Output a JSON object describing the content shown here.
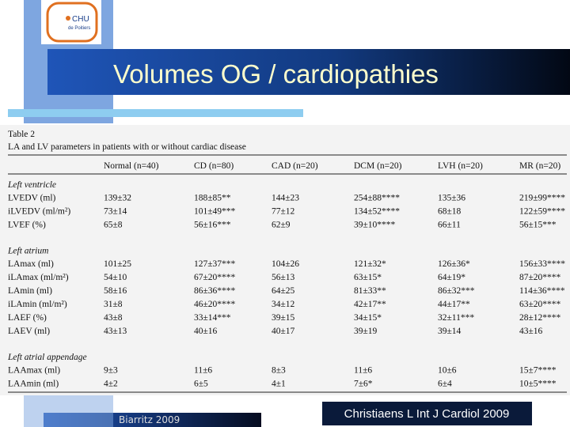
{
  "logo": {
    "line1": "CHU",
    "line2": "de Poitiers"
  },
  "header": {
    "title": "Volumes OG / cardiopathies"
  },
  "table": {
    "caption": "Table 2",
    "subtitle": "LA and LV parameters in patients with or without cardiac disease",
    "columns": [
      "Normal (n=40)",
      "CD (n=80)",
      "CAD (n=20)",
      "DCM (n=20)",
      "LVH (n=20)",
      "MR (n=20)"
    ],
    "sections": [
      {
        "heading": "Left ventricle",
        "rows": [
          [
            "LVEDV (ml)",
            "139±32",
            "188±85**",
            "144±23",
            "254±88****",
            "135±36",
            "219±99****"
          ],
          [
            "iLVEDV (ml/m²)",
            "73±14",
            "101±49***",
            "77±12",
            "134±52****",
            "68±18",
            "122±59****"
          ],
          [
            "LVEF (%)",
            "65±8",
            "56±16***",
            "62±9",
            "39±10****",
            "66±11",
            "56±15***"
          ]
        ]
      },
      {
        "heading": "Left atrium",
        "rows": [
          [
            "LAmax (ml)",
            "101±25",
            "127±37***",
            "104±26",
            "121±32*",
            "126±36*",
            "156±33****"
          ],
          [
            "iLAmax (ml/m²)",
            "54±10",
            "67±20****",
            "56±13",
            "63±15*",
            "64±19*",
            "87±20****"
          ],
          [
            "LAmin (ml)",
            "58±16",
            "86±36****",
            "64±25",
            "81±33**",
            "86±32***",
            "114±36****"
          ],
          [
            "iLAmin (ml/m²)",
            "31±8",
            "46±20****",
            "34±12",
            "42±17**",
            "44±17**",
            "63±20****"
          ],
          [
            "LAEF (%)",
            "43±8",
            "33±14***",
            "39±15",
            "34±15*",
            "32±11***",
            "28±12****"
          ],
          [
            "LAEV (ml)",
            "43±13",
            "40±16",
            "40±17",
            "39±19",
            "39±14",
            "43±16"
          ]
        ]
      },
      {
        "heading": "Left atrial appendage",
        "rows": [
          [
            "LAAmax (ml)",
            "9±3",
            "11±6",
            "8±3",
            "11±6",
            "10±6",
            "15±7****"
          ],
          [
            "LAAmin (ml)",
            "4±2",
            "6±5",
            "4±1",
            "7±6*",
            "6±4",
            "10±5****"
          ]
        ]
      }
    ]
  },
  "footer": {
    "left": "Biarritz 2009",
    "right": "Christiaens L Int J Cardiol 2009"
  }
}
